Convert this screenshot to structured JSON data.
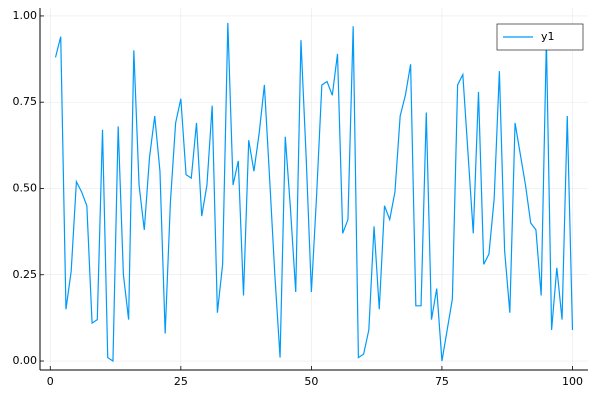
{
  "chart_data": {
    "type": "line",
    "x": [
      1,
      2,
      3,
      4,
      5,
      6,
      7,
      8,
      9,
      10,
      11,
      12,
      13,
      14,
      15,
      16,
      17,
      18,
      19,
      20,
      21,
      22,
      23,
      24,
      25,
      26,
      27,
      28,
      29,
      30,
      31,
      32,
      33,
      34,
      35,
      36,
      37,
      38,
      39,
      40,
      41,
      42,
      43,
      44,
      45,
      46,
      47,
      48,
      49,
      50,
      51,
      52,
      53,
      54,
      55,
      56,
      57,
      58,
      59,
      60,
      61,
      62,
      63,
      64,
      65,
      66,
      67,
      68,
      69,
      70,
      71,
      72,
      73,
      74,
      75,
      76,
      77,
      78,
      79,
      80,
      81,
      82,
      83,
      84,
      85,
      86,
      87,
      88,
      89,
      90,
      91,
      92,
      93,
      94,
      95,
      96,
      97,
      98,
      99,
      100
    ],
    "series": [
      {
        "name": "y1",
        "color": "#009af9",
        "values": [
          0.88,
          0.94,
          0.15,
          0.26,
          0.52,
          0.49,
          0.45,
          0.11,
          0.12,
          0.67,
          0.01,
          0.0,
          0.68,
          0.25,
          0.12,
          0.9,
          0.51,
          0.38,
          0.59,
          0.71,
          0.55,
          0.08,
          0.46,
          0.69,
          0.76,
          0.54,
          0.53,
          0.69,
          0.42,
          0.51,
          0.74,
          0.14,
          0.28,
          0.98,
          0.51,
          0.58,
          0.19,
          0.64,
          0.55,
          0.66,
          0.8,
          0.53,
          0.25,
          0.01,
          0.65,
          0.44,
          0.2,
          0.93,
          0.59,
          0.2,
          0.48,
          0.8,
          0.81,
          0.77,
          0.89,
          0.37,
          0.41,
          0.97,
          0.01,
          0.02,
          0.09,
          0.39,
          0.15,
          0.45,
          0.41,
          0.49,
          0.71,
          0.77,
          0.86,
          0.16,
          0.16,
          0.72,
          0.12,
          0.21,
          0.0,
          0.09,
          0.18,
          0.8,
          0.83,
          0.6,
          0.37,
          0.78,
          0.28,
          0.31,
          0.47,
          0.84,
          0.32,
          0.14,
          0.69,
          0.6,
          0.51,
          0.4,
          0.38,
          0.19,
          0.93,
          0.09,
          0.27,
          0.12,
          0.71,
          0.09
        ]
      }
    ],
    "xlim": [
      -1.97,
      102.97
    ],
    "xticks": [
      0,
      25,
      50,
      75,
      100
    ],
    "ylim": [
      -0.026,
      1.023
    ],
    "yticks": [
      {
        "value": 0,
        "label": "0.00"
      },
      {
        "value": 0.25,
        "label": "0.25"
      },
      {
        "value": 0.5,
        "label": "0.50"
      },
      {
        "value": 0.75,
        "label": "0.75"
      },
      {
        "value": 1,
        "label": "1.00"
      }
    ],
    "grid": true,
    "legend": "top-right"
  }
}
